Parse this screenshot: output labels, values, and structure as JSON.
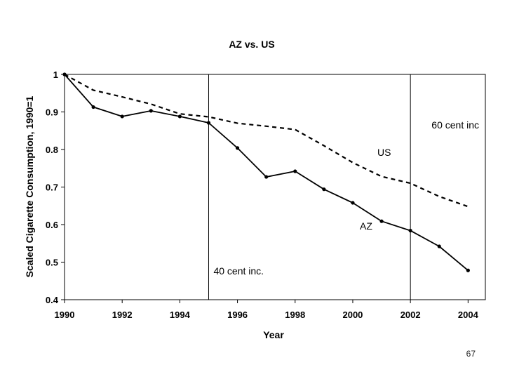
{
  "chart_data": {
    "type": "line",
    "title": "AZ vs. US",
    "xlabel": "Year",
    "ylabel": "Scaled Cigarette Consumption, 1990=1",
    "xlim": [
      1990,
      2004.6
    ],
    "ylim": [
      0.4,
      1.0
    ],
    "x_ticks": [
      1990,
      1992,
      1994,
      1996,
      1998,
      2000,
      2002,
      2004
    ],
    "y_ticks": [
      {
        "value": 0.4,
        "label": "0.4"
      },
      {
        "value": 0.5,
        "label": "0.5"
      },
      {
        "value": 0.6,
        "label": "0.6"
      },
      {
        "value": 0.7,
        "label": "0.7"
      },
      {
        "value": 0.8,
        "label": "0.8"
      },
      {
        "value": 0.9,
        "label": "0.9"
      },
      {
        "value": 1.0,
        "label": "1"
      }
    ],
    "series": [
      {
        "name": "AZ",
        "style": "solid",
        "markers": true,
        "color": "#000000",
        "x": [
          1990,
          1991,
          1992,
          1993,
          1994,
          1995,
          1996,
          1997,
          1998,
          1999,
          2000,
          2001,
          2002,
          2003,
          2004
        ],
        "y": [
          1.0,
          0.913,
          0.888,
          0.903,
          0.888,
          0.871,
          0.804,
          0.727,
          0.742,
          0.694,
          0.658,
          0.609,
          0.584,
          0.542,
          0.478
        ]
      },
      {
        "name": "US",
        "style": "dashed",
        "markers": false,
        "color": "#000000",
        "x": [
          1990,
          1991,
          1992,
          1993,
          1994,
          1995,
          1996,
          1997,
          1998,
          1999,
          2000,
          2001,
          2002,
          2003,
          2004
        ],
        "y": [
          1.0,
          0.958,
          0.94,
          0.921,
          0.895,
          0.887,
          0.87,
          0.862,
          0.853,
          0.81,
          0.765,
          0.728,
          0.71,
          0.675,
          0.648
        ]
      }
    ],
    "vertical_lines": [
      {
        "x": 1995,
        "label": "40 cent inc."
      },
      {
        "x": 2002,
        "label": "60 cent inc"
      }
    ],
    "series_labels": [
      {
        "series": "US",
        "text": "US"
      },
      {
        "series": "AZ",
        "text": "AZ"
      }
    ],
    "grid": false
  },
  "page_number": "67"
}
